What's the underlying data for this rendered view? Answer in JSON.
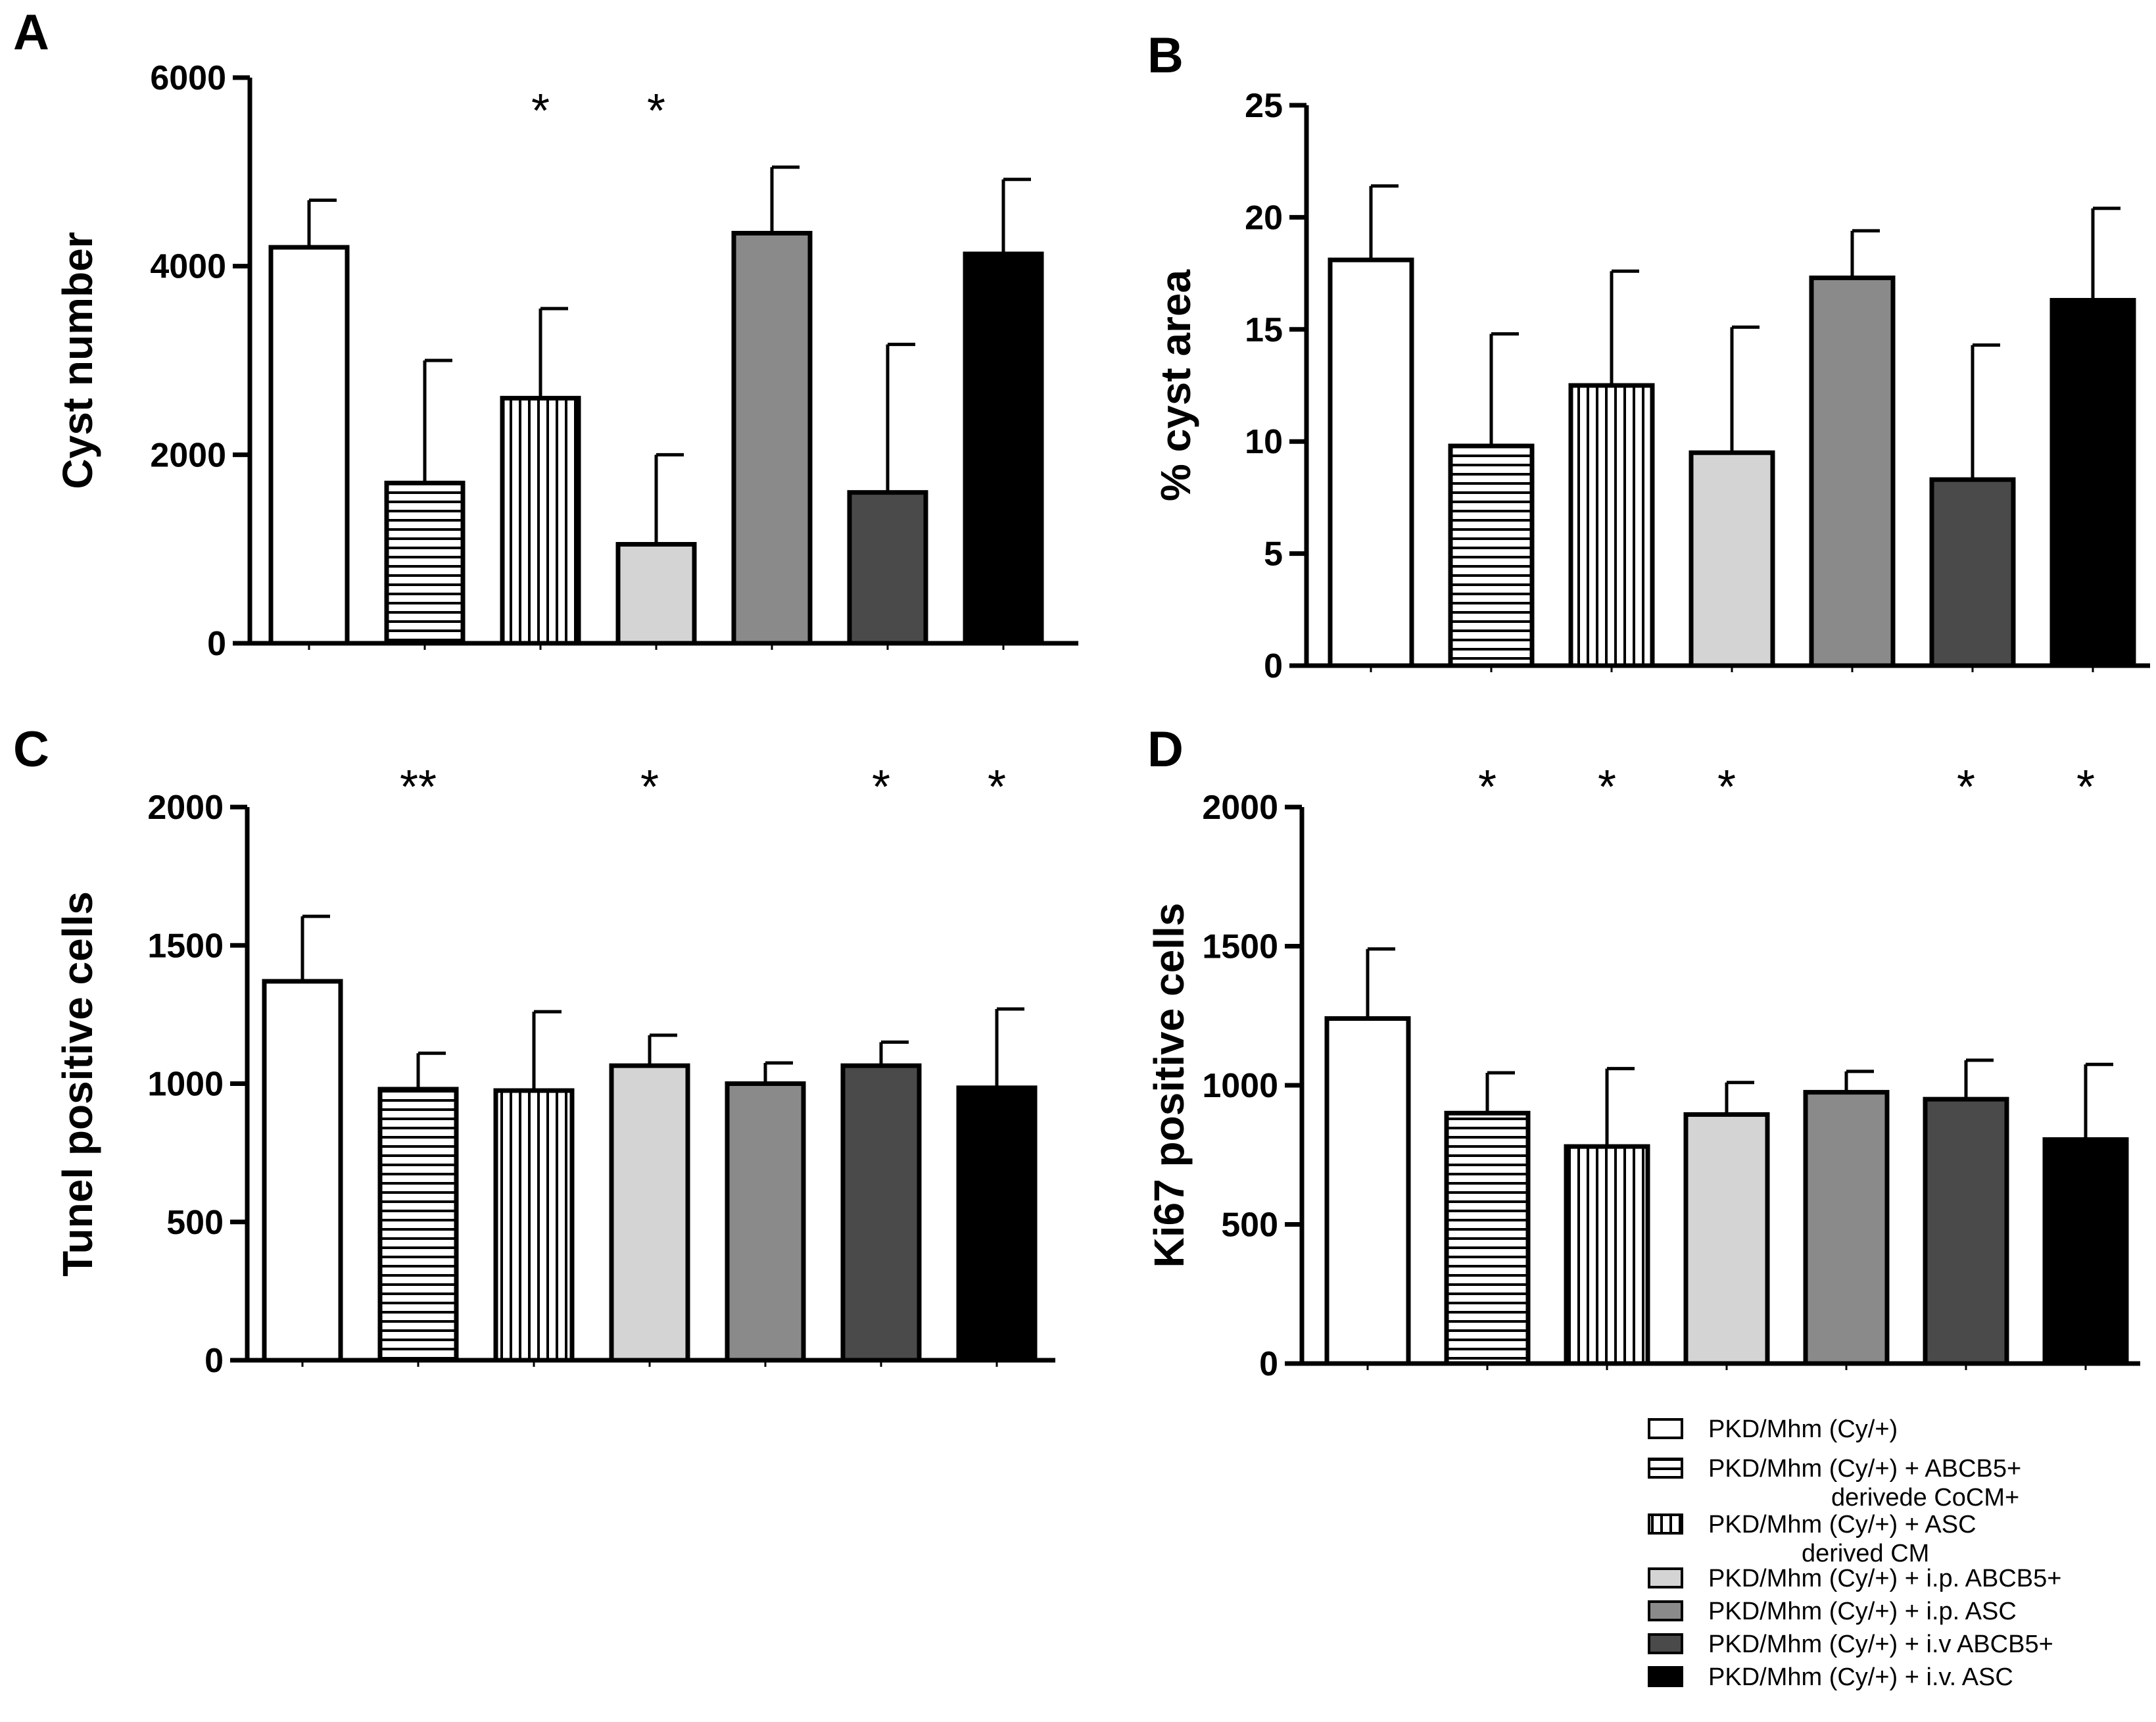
{
  "figure": {
    "colors": {
      "white": "#ffffff",
      "light_gray": "#d4d4d4",
      "mid_gray": "#8a8a8a",
      "dark_gray": "#4a4a4a",
      "black": "#000000"
    }
  },
  "chart_data": [
    {
      "panel": "A",
      "type": "bar",
      "ylabel": "Cyst number",
      "ylim": [
        0,
        6000
      ],
      "yticks": [
        0,
        2000,
        4000,
        6000
      ],
      "categories": [
        "PKD/Mhm (Cy/+)",
        "PKD/Mhm (Cy/+) + ABCB5+ derivede CoCM+",
        "PKD/Mhm (Cy/+) + ASC derived CM",
        "PKD/Mhm (Cy/+) + i.p. ABCB5+",
        "PKD/Mhm (Cy/+) + i.p. ASC",
        "PKD/Mhm (Cy/+) + i.v ABCB5+",
        "PKD/Mhm (Cy/+) + i.v. ASC"
      ],
      "values": [
        4200,
        1700,
        2600,
        1050,
        4350,
        1600,
        4130
      ],
      "errors": [
        500,
        1300,
        950,
        950,
        700,
        1570,
        790
      ],
      "significance": [
        "",
        "",
        "*",
        "*",
        "",
        "",
        ""
      ]
    },
    {
      "panel": "B",
      "type": "bar",
      "ylabel": "% cyst area",
      "ylim": [
        0,
        25
      ],
      "yticks": [
        0,
        5,
        10,
        15,
        20,
        25
      ],
      "categories": [
        "PKD/Mhm (Cy/+)",
        "PKD/Mhm (Cy/+) + ABCB5+ derivede CoCM+",
        "PKD/Mhm (Cy/+) + ASC derived CM",
        "PKD/Mhm (Cy/+) + i.p. ABCB5+",
        "PKD/Mhm (Cy/+) + i.p. ASC",
        "PKD/Mhm (Cy/+) + i.v ABCB5+",
        "PKD/Mhm (Cy/+) + i.v. ASC"
      ],
      "values": [
        18.1,
        9.8,
        12.5,
        9.5,
        17.3,
        8.3,
        16.3
      ],
      "errors": [
        3.3,
        5.0,
        5.1,
        5.6,
        2.1,
        6.0,
        4.1
      ],
      "significance": [
        "",
        "",
        "",
        "",
        "",
        "",
        ""
      ]
    },
    {
      "panel": "C",
      "type": "bar",
      "ylabel": "Tunel positive cells",
      "ylim": [
        0,
        2000
      ],
      "yticks": [
        0,
        500,
        1000,
        1500,
        2000
      ],
      "categories": [
        "PKD/Mhm (Cy/+)",
        "PKD/Mhm (Cy/+) + ABCB5+ derivede CoCM+",
        "PKD/Mhm (Cy/+) + ASC derived CM",
        "PKD/Mhm (Cy/+) + i.p. ABCB5+",
        "PKD/Mhm (Cy/+) + i.p. ASC",
        "PKD/Mhm (Cy/+) + i.v ABCB5+",
        "PKD/Mhm (Cy/+) + i.v. ASC"
      ],
      "values": [
        1370,
        980,
        975,
        1065,
        1000,
        1065,
        985
      ],
      "errors": [
        235,
        130,
        285,
        110,
        75,
        85,
        285
      ],
      "significance": [
        "",
        "**",
        "",
        "*",
        "",
        "*",
        "*"
      ]
    },
    {
      "panel": "D",
      "type": "bar",
      "ylabel": "Ki67 positive cells",
      "ylim": [
        0,
        2000
      ],
      "yticks": [
        0,
        500,
        1000,
        1500,
        2000
      ],
      "categories": [
        "PKD/Mhm (Cy/+)",
        "PKD/Mhm (Cy/+) + ABCB5+ derivede CoCM+",
        "PKD/Mhm (Cy/+) + ASC derived CM",
        "PKD/Mhm (Cy/+) + i.p. ABCB5+",
        "PKD/Mhm (Cy/+) + i.p. ASC",
        "PKD/Mhm (Cy/+) + i.v ABCB5+",
        "PKD/Mhm (Cy/+) + i.v. ASC"
      ],
      "values": [
        1240,
        900,
        780,
        895,
        975,
        950,
        805
      ],
      "errors": [
        250,
        145,
        280,
        115,
        75,
        140,
        270
      ],
      "significance": [
        "",
        "*",
        "*",
        "*",
        "",
        "*",
        "*"
      ]
    }
  ],
  "legend": [
    {
      "pattern": "white",
      "lines": [
        "PKD/Mhm (Cy/+)"
      ]
    },
    {
      "pattern": "hstripe",
      "lines": [
        "PKD/Mhm (Cy/+) + ABCB5+",
        "derivede CoCM+"
      ]
    },
    {
      "pattern": "vstripe",
      "lines": [
        "PKD/Mhm (Cy/+) + ASC",
        "derived CM"
      ]
    },
    {
      "pattern": "light_gray",
      "lines": [
        "PKD/Mhm (Cy/+) + i.p. ABCB5+"
      ]
    },
    {
      "pattern": "mid_gray",
      "lines": [
        "PKD/Mhm (Cy/+) + i.p. ASC"
      ]
    },
    {
      "pattern": "dark_gray",
      "lines": [
        "PKD/Mhm (Cy/+) + i.v ABCB5+"
      ]
    },
    {
      "pattern": "black",
      "lines": [
        "PKD/Mhm (Cy/+) + i.v. ASC"
      ]
    }
  ]
}
